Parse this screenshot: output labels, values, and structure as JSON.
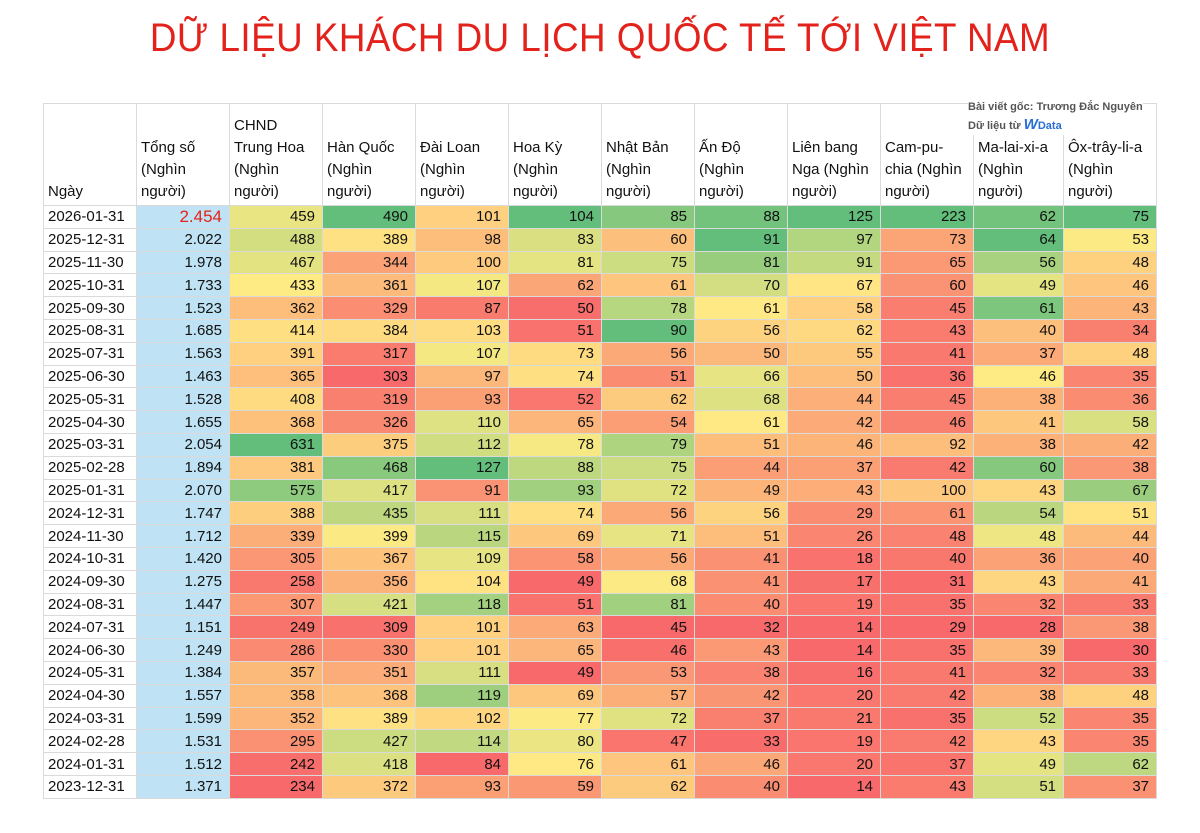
{
  "header": {
    "title": "DỮ LIỆU KHÁCH DU LỊCH QUỐC TẾ TỚI VIỆT NAM",
    "credit": "Bài viết gốc: Trương Đắc Nguyên",
    "source_prefix": "Dữ liệu từ",
    "source_w": "W",
    "source_name": "Data"
  },
  "table": {
    "columns": [
      "Ngày",
      "Tổng số (Nghìn người)",
      "CHND Trung Hoa (Nghìn người)",
      "Hàn Quốc (Nghìn người)",
      "Đài Loan (Nghìn người)",
      "Hoa Kỳ (Nghìn người)",
      "Nhật Bản (Nghìn người)",
      "Ấn Độ (Nghìn người)",
      "Liên bang Nga (Nghìn người)",
      "Cam-pu-chia (Nghìn người)",
      "Ma-lai-xi-a (Nghìn người)",
      "Ôx-trây-li-a (Nghìn người)"
    ],
    "rows": [
      [
        "2026-01-31",
        "2.454",
        459,
        490,
        101,
        104,
        85,
        88,
        125,
        223,
        62,
        75
      ],
      [
        "2025-12-31",
        "2.022",
        488,
        389,
        98,
        83,
        60,
        91,
        97,
        73,
        64,
        53
      ],
      [
        "2025-11-30",
        "1.978",
        467,
        344,
        100,
        81,
        75,
        81,
        91,
        65,
        56,
        48
      ],
      [
        "2025-10-31",
        "1.733",
        433,
        361,
        107,
        62,
        61,
        70,
        67,
        60,
        49,
        46
      ],
      [
        "2025-09-30",
        "1.523",
        362,
        329,
        87,
        50,
        78,
        61,
        58,
        45,
        61,
        43
      ],
      [
        "2025-08-31",
        "1.685",
        414,
        384,
        103,
        51,
        90,
        56,
        62,
        43,
        40,
        34
      ],
      [
        "2025-07-31",
        "1.563",
        391,
        317,
        107,
        73,
        56,
        50,
        55,
        41,
        37,
        48
      ],
      [
        "2025-06-30",
        "1.463",
        365,
        303,
        97,
        74,
        51,
        66,
        50,
        36,
        46,
        35
      ],
      [
        "2025-05-31",
        "1.528",
        408,
        319,
        93,
        52,
        62,
        68,
        44,
        45,
        38,
        36
      ],
      [
        "2025-04-30",
        "1.655",
        368,
        326,
        110,
        65,
        54,
        61,
        42,
        46,
        41,
        58
      ],
      [
        "2025-03-31",
        "2.054",
        631,
        375,
        112,
        78,
        79,
        51,
        46,
        92,
        38,
        42
      ],
      [
        "2025-02-28",
        "1.894",
        381,
        468,
        127,
        88,
        75,
        44,
        37,
        42,
        60,
        38
      ],
      [
        "2025-01-31",
        "2.070",
        575,
        417,
        91,
        93,
        72,
        49,
        43,
        100,
        43,
        67
      ],
      [
        "2024-12-31",
        "1.747",
        388,
        435,
        111,
        74,
        56,
        56,
        29,
        61,
        54,
        51
      ],
      [
        "2024-11-30",
        "1.712",
        339,
        399,
        115,
        69,
        71,
        51,
        26,
        48,
        48,
        44
      ],
      [
        "2024-10-31",
        "1.420",
        305,
        367,
        109,
        58,
        56,
        41,
        18,
        40,
        36,
        40
      ],
      [
        "2024-09-30",
        "1.275",
        258,
        356,
        104,
        49,
        68,
        41,
        17,
        31,
        43,
        41
      ],
      [
        "2024-08-31",
        "1.447",
        307,
        421,
        118,
        51,
        81,
        40,
        19,
        35,
        32,
        33
      ],
      [
        "2024-07-31",
        "1.151",
        249,
        309,
        101,
        63,
        45,
        32,
        14,
        29,
        28,
        38
      ],
      [
        "2024-06-30",
        "1.249",
        286,
        330,
        101,
        65,
        46,
        43,
        14,
        35,
        39,
        30
      ],
      [
        "2024-05-31",
        "1.384",
        357,
        351,
        111,
        49,
        53,
        38,
        16,
        41,
        32,
        33
      ],
      [
        "2024-04-30",
        "1.557",
        358,
        368,
        119,
        69,
        57,
        42,
        20,
        42,
        38,
        48
      ],
      [
        "2024-03-31",
        "1.599",
        352,
        389,
        102,
        77,
        72,
        37,
        21,
        35,
        52,
        35
      ],
      [
        "2024-02-28",
        "1.531",
        295,
        427,
        114,
        80,
        47,
        33,
        19,
        42,
        43,
        35
      ],
      [
        "2024-01-31",
        "1.512",
        242,
        418,
        84,
        76,
        61,
        46,
        20,
        37,
        49,
        62
      ],
      [
        "2023-12-31",
        "1.371",
        234,
        372,
        93,
        59,
        62,
        40,
        14,
        43,
        51,
        37
      ]
    ]
  }
}
